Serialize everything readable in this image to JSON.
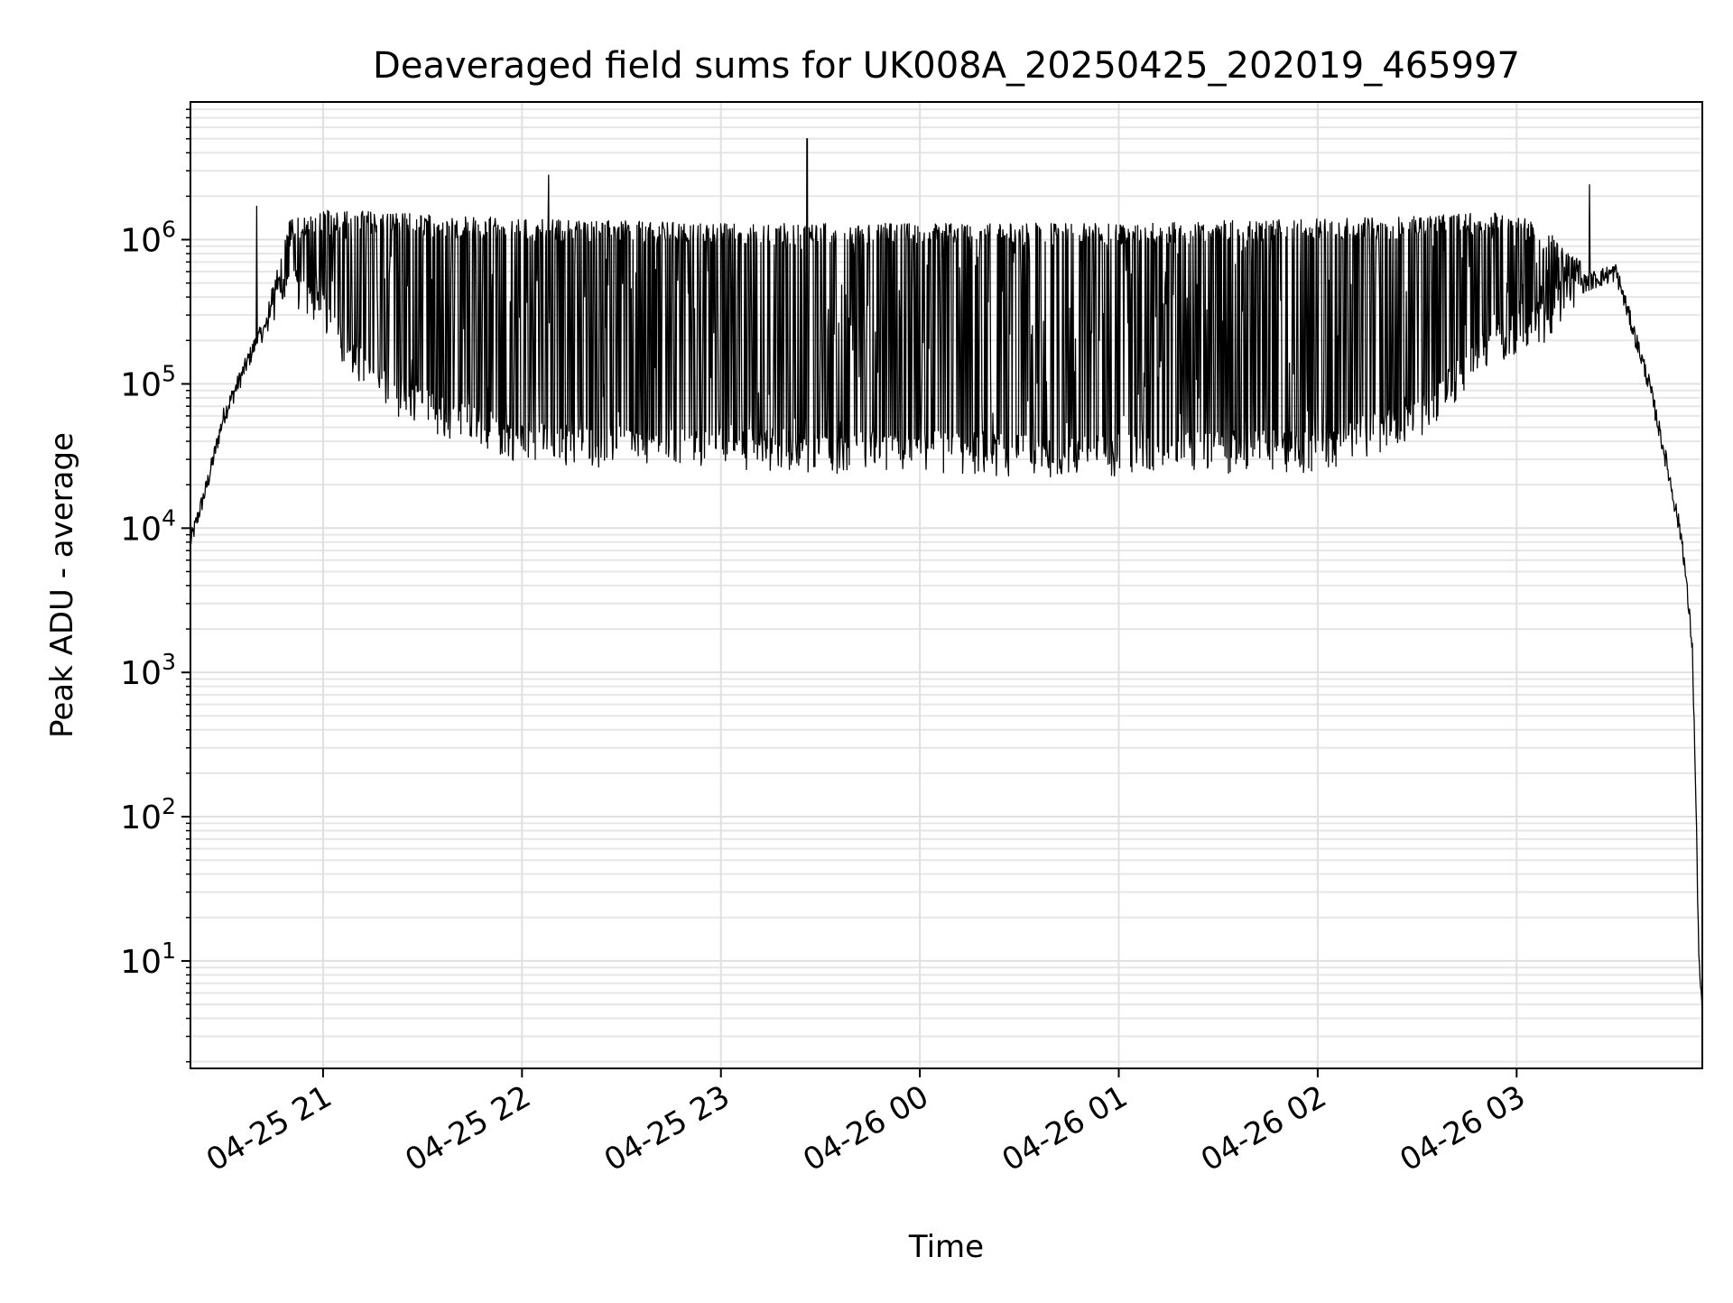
{
  "chart_data": {
    "type": "line",
    "title": "Deaveraged field sums for UK008A_20250425_202019_465997",
    "xlabel": "Time",
    "ylabel": "Peak ADU - average",
    "yscale": "log",
    "ylim": [
      1.8,
      9000000
    ],
    "xlim": [
      "2025-04-25 20:20",
      "2025-04-26 03:56"
    ],
    "grid": true,
    "xticks": [
      {
        "t": "2025-04-25 21:00",
        "label": "04-25 21"
      },
      {
        "t": "2025-04-25 22:00",
        "label": "04-25 22"
      },
      {
        "t": "2025-04-25 23:00",
        "label": "04-25 23"
      },
      {
        "t": "2025-04-26 00:00",
        "label": "04-26 00"
      },
      {
        "t": "2025-04-26 01:00",
        "label": "04-26 01"
      },
      {
        "t": "2025-04-26 02:00",
        "label": "04-26 02"
      },
      {
        "t": "2025-04-26 03:00",
        "label": "04-26 03"
      }
    ],
    "yticks": [
      {
        "v": 10,
        "base": "10",
        "exp": "1"
      },
      {
        "v": 100,
        "base": "10",
        "exp": "2"
      },
      {
        "v": 1000,
        "base": "10",
        "exp": "3"
      },
      {
        "v": 10000,
        "base": "10",
        "exp": "4"
      },
      {
        "v": 100000,
        "base": "10",
        "exp": "5"
      },
      {
        "v": 1000000,
        "base": "10",
        "exp": "6"
      }
    ],
    "series": [
      {
        "color": "#000000",
        "envelope": {
          "x": [
            "2025-04-25 20:20",
            "2025-04-25 20:25",
            "2025-04-25 20:30",
            "2025-04-25 20:40",
            "2025-04-25 20:50",
            "2025-04-25 21:00",
            "2025-04-25 21:10",
            "2025-04-25 21:20",
            "2025-04-25 21:30",
            "2025-04-25 21:45",
            "2025-04-25 22:00",
            "2025-04-25 22:30",
            "2025-04-25 23:00",
            "2025-04-25 23:30",
            "2025-04-26 00:00",
            "2025-04-26 00:30",
            "2025-04-26 01:00",
            "2025-04-26 01:30",
            "2025-04-26 02:00",
            "2025-04-26 02:30",
            "2025-04-26 02:50",
            "2025-04-26 03:00",
            "2025-04-26 03:10",
            "2025-04-26 03:20",
            "2025-04-26 03:30",
            "2025-04-26 03:40",
            "2025-04-26 03:45",
            "2025-04-26 03:50",
            "2025-04-26 03:53",
            "2025-04-26 03:54",
            "2025-04-26 03:55",
            "2025-04-26 03:56"
          ],
          "lower": [
            8000,
            20000,
            60000,
            200000,
            450000,
            300000,
            120000,
            80000,
            60000,
            45000,
            35000,
            32000,
            32000,
            30000,
            30000,
            28000,
            28000,
            30000,
            30000,
            50000,
            150000,
            200000,
            250000,
            500000,
            600000,
            100000,
            30000,
            8000,
            1500,
            150,
            10,
            4
          ],
          "upper": [
            8000,
            20000,
            60000,
            200000,
            1400000,
            1600000,
            1600000,
            1550000,
            1500000,
            1450000,
            1400000,
            1350000,
            1300000,
            1300000,
            1300000,
            1300000,
            1300000,
            1350000,
            1400000,
            1450000,
            1550000,
            1550000,
            1100000,
            700000,
            800000,
            100000,
            30000,
            8000,
            1500,
            150,
            10,
            4
          ]
        },
        "spikes": [
          {
            "t": "2025-04-25 22:08",
            "v": 2800000
          },
          {
            "t": "2025-04-25 23:26",
            "v": 5000000
          },
          {
            "t": "2025-04-26 03:22",
            "v": 2400000
          },
          {
            "t": "2025-04-25 20:40",
            "v": 1700000
          }
        ]
      }
    ]
  }
}
